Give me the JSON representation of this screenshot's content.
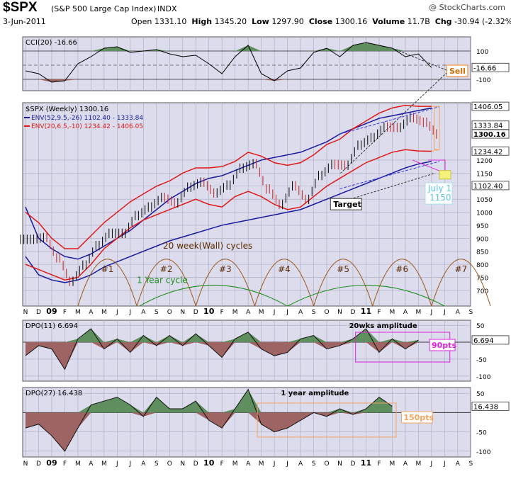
{
  "header": {
    "ticker": "$SPX",
    "company": "(S&P 500 Large Cap Index)",
    "exchange": "INDX",
    "watermark": "@ StockCharts.com",
    "date": "3-Jun-2011",
    "open_label": "Open",
    "open": "1331.10",
    "high_label": "High",
    "high": "1345.20",
    "low_label": "Low",
    "low": "1297.90",
    "close_label": "Close",
    "close": "1300.16",
    "volume_label": "Volume",
    "volume": "11.7B",
    "chg_label": "Chg",
    "chg": "-30.94 (-2.32%)",
    "chg_marker": "▼"
  },
  "colors": {
    "panel_bg": "#dcdcec",
    "grid": "#a9a9c3",
    "pos_fill": "#5f8f5f",
    "neg_fill": "#9e6464",
    "env_blue": "#1a1a9c",
    "env_red": "#e01818",
    "cycle_brown": "#9b5518",
    "cycle_green": "#1e8c1e",
    "target_orange": "#f2a35e",
    "magenta": "#dd22dd"
  },
  "x_axis": {
    "labels": [
      "N",
      "D",
      "09",
      "F",
      "M",
      "A",
      "M",
      "J",
      "J",
      "A",
      "S",
      "O",
      "N",
      "D",
      "10",
      "F",
      "M",
      "A",
      "M",
      "J",
      "J",
      "A",
      "S",
      "O",
      "N",
      "D",
      "11",
      "F",
      "M",
      "A",
      "M",
      "J",
      "J",
      "A",
      "S"
    ],
    "bold": [
      "09",
      "10",
      "11"
    ]
  },
  "chart_data": [
    {
      "type": "line",
      "title": "CCI(20) -16.66",
      "indicator": "CCI(20)",
      "last_value": -16.66,
      "yticks": [
        100,
        -100
      ],
      "ylim": [
        -180,
        200
      ],
      "reference_lines": [
        100,
        0,
        -100
      ],
      "x": [
        "2008-11",
        "2008-12",
        "2009-01",
        "2009-02",
        "2009-03",
        "2009-04",
        "2009-05",
        "2009-06",
        "2009-07",
        "2009-08",
        "2009-09",
        "2009-10",
        "2009-11",
        "2009-12",
        "2010-01",
        "2010-02",
        "2010-03",
        "2010-04",
        "2010-05",
        "2010-06",
        "2010-07",
        "2010-08",
        "2010-09",
        "2010-10",
        "2010-11",
        "2010-12",
        "2011-01",
        "2011-02",
        "2011-03",
        "2011-04",
        "2011-05",
        "2011-06"
      ],
      "values": [
        -40,
        -60,
        -120,
        -110,
        10,
        60,
        120,
        130,
        90,
        100,
        110,
        80,
        60,
        70,
        10,
        -60,
        60,
        140,
        -60,
        -110,
        -40,
        -20,
        90,
        120,
        60,
        140,
        160,
        140,
        120,
        60,
        80,
        -16.66
      ],
      "annotations": [
        {
          "text": "Sell",
          "type": "callout"
        }
      ]
    },
    {
      "type": "line",
      "title": "$SPX (Weekly) 1300.16",
      "series": [
        {
          "name": "ENV(52,9.5,-26) 1102.40 - 1333.84",
          "role": "upper-lower envelope (blue)",
          "upper_last": 1333.84,
          "lower_last": 1102.4
        },
        {
          "name": "ENV(20,6.5,-10) 1234.42 - 1406.05",
          "role": "upper-lower envelope (red)",
          "upper_last": 1406.05,
          "lower_last": 1234.42
        }
      ],
      "price_x": [
        "2008-11",
        "2008-12",
        "2009-01",
        "2009-02",
        "2009-03",
        "2009-04",
        "2009-05",
        "2009-06",
        "2009-07",
        "2009-08",
        "2009-09",
        "2009-10",
        "2009-11",
        "2009-12",
        "2010-01",
        "2010-02",
        "2010-03",
        "2010-04",
        "2010-05",
        "2010-06",
        "2010-07",
        "2010-08",
        "2010-09",
        "2010-10",
        "2010-11",
        "2010-12",
        "2011-01",
        "2011-02",
        "2011-03",
        "2011-04",
        "2011-05",
        "2011-06"
      ],
      "price_close": [
        896,
        903,
        825,
        735,
        797,
        872,
        919,
        919,
        987,
        1020,
        1057,
        1036,
        1096,
        1115,
        1074,
        1104,
        1169,
        1186,
        1089,
        1030,
        1101,
        1049,
        1141,
        1183,
        1180,
        1257,
        1286,
        1327,
        1325,
        1363,
        1345,
        1300
      ],
      "blue_upper": [
        1020,
        900,
        860,
        830,
        820,
        840,
        870,
        900,
        930,
        970,
        1010,
        1050,
        1080,
        1110,
        1130,
        1140,
        1160,
        1180,
        1200,
        1210,
        1220,
        1230,
        1250,
        1270,
        1300,
        1320,
        1340,
        1360,
        1370,
        1380,
        1390,
        1400
      ],
      "blue_lower": [
        830,
        760,
        740,
        730,
        740,
        760,
        790,
        810,
        830,
        850,
        870,
        890,
        905,
        920,
        935,
        950,
        960,
        970,
        980,
        990,
        1000,
        1010,
        1030,
        1050,
        1070,
        1090,
        1110,
        1130,
        1150,
        1170,
        1185,
        1195
      ],
      "red_upper": [
        1000,
        960,
        900,
        860,
        860,
        910,
        960,
        1000,
        1040,
        1070,
        1100,
        1120,
        1150,
        1170,
        1170,
        1175,
        1195,
        1230,
        1215,
        1190,
        1180,
        1190,
        1220,
        1260,
        1280,
        1320,
        1350,
        1380,
        1400,
        1410,
        1406,
        1406
      ],
      "red_lower": [
        800,
        780,
        760,
        740,
        750,
        800,
        860,
        900,
        940,
        970,
        990,
        1010,
        1030,
        1050,
        1030,
        1020,
        1060,
        1080,
        1060,
        1030,
        1010,
        1020,
        1060,
        1100,
        1130,
        1160,
        1190,
        1210,
        1230,
        1240,
        1235,
        1234
      ],
      "yticks": [
        1200,
        1150,
        1100,
        1050,
        1000,
        950,
        900,
        850,
        800,
        750,
        700
      ],
      "ylim": [
        640,
        1420
      ],
      "price_labels": [
        "1406.05",
        "1333.84",
        "1300.16",
        "1234.42",
        "1102.40"
      ],
      "annotations": [
        {
          "text": "20 week(Wall) cycles"
        },
        {
          "text": "#1"
        },
        {
          "text": "#2"
        },
        {
          "text": "#3"
        },
        {
          "text": "#4"
        },
        {
          "text": "#5"
        },
        {
          "text": "#6"
        },
        {
          "text": "#7"
        },
        {
          "text": "1 Year cycle"
        },
        {
          "text": "Target"
        },
        {
          "text": "July 1"
        },
        {
          "text": "1150"
        }
      ]
    },
    {
      "type": "area",
      "title": "DPO(11) 6.694",
      "indicator": "DPO(11)",
      "last_value": 6.694,
      "yticks": [
        50,
        -50,
        -100
      ],
      "ylim": [
        -115,
        65
      ],
      "x": [
        "2008-11",
        "2008-12",
        "2009-01",
        "2009-02",
        "2009-03",
        "2009-04",
        "2009-05",
        "2009-06",
        "2009-07",
        "2009-08",
        "2009-09",
        "2009-10",
        "2009-11",
        "2009-12",
        "2010-01",
        "2010-02",
        "2010-03",
        "2010-04",
        "2010-05",
        "2010-06",
        "2010-07",
        "2010-08",
        "2010-09",
        "2010-10",
        "2010-11",
        "2010-12",
        "2011-01",
        "2011-02",
        "2011-03",
        "2011-04",
        "2011-05"
      ],
      "values": [
        -40,
        -10,
        -20,
        -80,
        10,
        40,
        -20,
        10,
        -30,
        20,
        -10,
        20,
        -10,
        25,
        -10,
        -45,
        10,
        30,
        -20,
        -40,
        -30,
        10,
        20,
        -20,
        -10,
        10,
        40,
        -30,
        10,
        -20,
        6.694
      ],
      "annotations": [
        {
          "text": "20wks amplitude"
        },
        {
          "text": "90pts"
        }
      ]
    },
    {
      "type": "area",
      "title": "DPO(27) 16.438",
      "indicator": "DPO(27)",
      "last_value": 16.438,
      "yticks": [
        50,
        -50,
        -100
      ],
      "ylim": [
        -115,
        65
      ],
      "x": [
        "2008-11",
        "2008-12",
        "2009-01",
        "2009-02",
        "2009-03",
        "2009-04",
        "2009-05",
        "2009-06",
        "2009-07",
        "2009-08",
        "2009-09",
        "2009-10",
        "2009-11",
        "2009-12",
        "2010-01",
        "2010-02",
        "2010-03",
        "2010-04",
        "2010-05",
        "2010-06",
        "2010-07",
        "2010-08",
        "2010-09",
        "2010-10",
        "2010-11",
        "2010-12",
        "2011-01",
        "2011-02",
        "2011-03"
      ],
      "values": [
        -40,
        -30,
        -60,
        -100,
        -40,
        20,
        30,
        40,
        20,
        -10,
        40,
        10,
        10,
        30,
        -20,
        -40,
        10,
        60,
        -30,
        -50,
        -40,
        -20,
        0,
        -10,
        10,
        -5,
        10,
        40,
        16.438
      ],
      "annotations": [
        {
          "text": "1 year amplitude"
        },
        {
          "text": "150pts"
        }
      ]
    }
  ]
}
